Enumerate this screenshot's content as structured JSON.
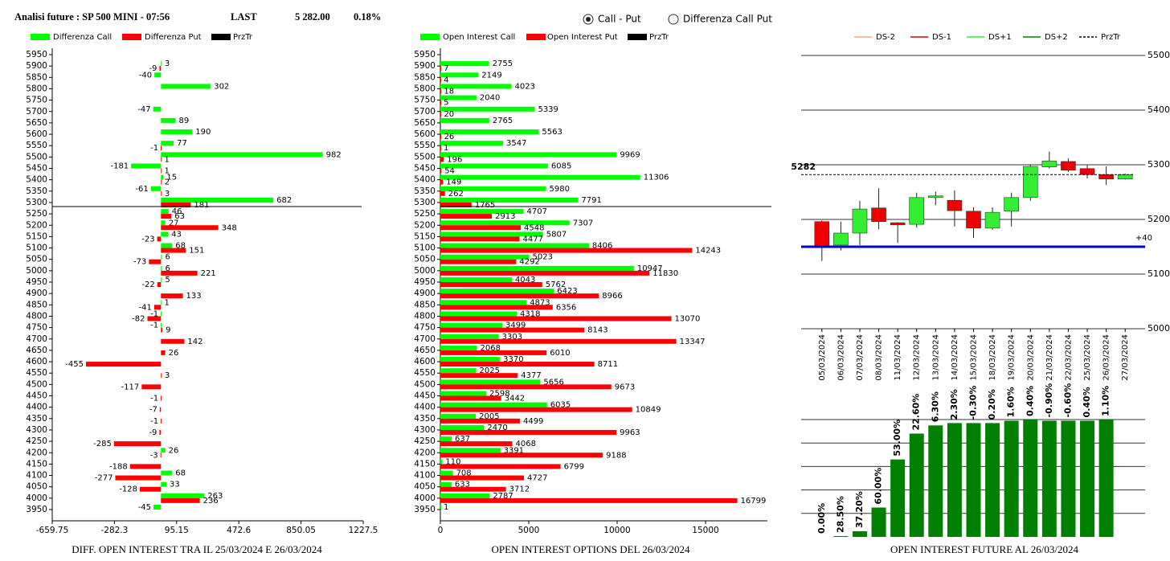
{
  "header": {
    "title": "Analisi future : SP 500 MINI - 07:56",
    "last_label": "LAST",
    "last": {
      "value": 5282,
      "label": "5 282.00"
    },
    "change": "0.18%"
  },
  "controls": {
    "options": [
      "Call - Put",
      "Differenza Call Put"
    ],
    "selected": 0
  },
  "chart_data": [
    {
      "type": "bar",
      "orientation": "horizontal",
      "categories": [
        5950,
        5900,
        5850,
        5800,
        5750,
        5700,
        5650,
        5600,
        5550,
        5500,
        5450,
        5400,
        5350,
        5300,
        5250,
        5200,
        5150,
        5100,
        5050,
        5000,
        4950,
        4900,
        4850,
        4800,
        4750,
        4700,
        4650,
        4600,
        4550,
        4500,
        4450,
        4400,
        4350,
        4300,
        4250,
        4200,
        4150,
        4100,
        4050,
        4000,
        3950
      ],
      "series": [
        {
          "name": "Differenza Call",
          "color": "#00ff00",
          "values": [
            null,
            3,
            -40,
            302,
            null,
            -47,
            89,
            190,
            77,
            982,
            -181,
            15,
            -61,
            682,
            46,
            27,
            43,
            68,
            6,
            6,
            5,
            null,
            1,
            -1,
            -1,
            null,
            null,
            null,
            null,
            null,
            null,
            null,
            null,
            null,
            null,
            26,
            null,
            68,
            33,
            263,
            -45
          ]
        },
        {
          "name": "Differenza Put",
          "color": "#ff0000",
          "values": [
            null,
            -9,
            null,
            null,
            null,
            null,
            null,
            null,
            -1,
            1,
            1,
            2,
            3,
            181,
            63,
            348,
            -23,
            151,
            -73,
            221,
            -22,
            133,
            -41,
            -82,
            9,
            142,
            26,
            -455,
            3,
            -117,
            -1,
            -7,
            -1,
            -9,
            -285,
            -3,
            -188,
            -277,
            -128,
            236,
            null
          ]
        }
      ],
      "reference_line": {
        "name": "PrzTr",
        "color": "#000000"
      },
      "xlim": [
        -659.75,
        1227.5
      ],
      "xticks": [
        -659.75,
        -282.3,
        95.15,
        472.6,
        850.05,
        1227.5
      ],
      "xlabel": "DIFF. OPEN INTEREST TRA IL 25/03/2024 E 26/03/2024"
    },
    {
      "type": "bar",
      "orientation": "horizontal",
      "categories": [
        5950,
        5900,
        5850,
        5800,
        5750,
        5700,
        5650,
        5600,
        5550,
        5500,
        5450,
        5400,
        5350,
        5300,
        5250,
        5200,
        5150,
        5100,
        5050,
        5000,
        4950,
        4900,
        4850,
        4800,
        4750,
        4700,
        4650,
        4600,
        4550,
        4500,
        4450,
        4400,
        4350,
        4300,
        4250,
        4200,
        4150,
        4100,
        4050,
        4000,
        3950
      ],
      "series": [
        {
          "name": "Open Interest Call",
          "color": "#00ff00",
          "values": [
            null,
            2755,
            2149,
            4023,
            2040,
            5339,
            2765,
            5563,
            3547,
            9969,
            6085,
            11306,
            5980,
            7791,
            4707,
            7307,
            5807,
            8406,
            5023,
            10947,
            4043,
            6423,
            4873,
            4318,
            3499,
            3303,
            2068,
            3370,
            2025,
            5656,
            2598,
            6035,
            2005,
            2470,
            637,
            3391,
            110,
            708,
            633,
            2787,
            1
          ]
        },
        {
          "name": "Open Interest Put",
          "color": "#ff0000",
          "values": [
            null,
            7,
            4,
            18,
            5,
            20,
            null,
            26,
            1,
            196,
            54,
            149,
            262,
            1765,
            2913,
            4548,
            4477,
            14243,
            4292,
            11830,
            5762,
            8966,
            6356,
            13070,
            8143,
            13347,
            6010,
            8711,
            4377,
            9673,
            3442,
            10849,
            4499,
            9963,
            4068,
            9188,
            6799,
            4727,
            3712,
            16799,
            null
          ]
        }
      ],
      "reference_line": {
        "name": "PrzTr",
        "color": "#000000"
      },
      "xlim": [
        0,
        18500
      ],
      "xticks": [
        0,
        5000,
        10000,
        15000
      ],
      "xlabel": "OPEN INTEREST OPTIONS DEL 26/03/2024"
    },
    {
      "type": "candlestick",
      "categories": [
        "05/03/2024",
        "06/03/2024",
        "07/03/2024",
        "08/03/2024",
        "11/03/2024",
        "12/03/2024",
        "13/03/2024",
        "14/03/2024",
        "15/03/2024",
        "18/03/2024",
        "19/03/2024",
        "20/03/2024",
        "21/03/2024",
        "22/03/2024",
        "25/03/2024",
        "26/03/2024",
        "27/03/2024"
      ],
      "open": [
        5196,
        5153,
        5175,
        5221,
        5194,
        5191,
        5240,
        5235,
        5215,
        5184,
        5215,
        5240,
        5296,
        5306,
        5293,
        5282,
        5274
      ],
      "high": [
        5198,
        5196,
        5234,
        5257,
        5195,
        5249,
        5251,
        5253,
        5222,
        5222,
        5249,
        5301,
        5324,
        5312,
        5299,
        5297,
        5284
      ],
      "low": [
        5124,
        5143,
        5153,
        5182,
        5157,
        5185,
        5226,
        5187,
        5166,
        5181,
        5187,
        5234,
        5293,
        5287,
        5275,
        5263,
        5273
      ],
      "close": [
        5151,
        5175,
        5219,
        5196,
        5190,
        5240,
        5243,
        5216,
        5184,
        5213,
        5240,
        5297,
        5307,
        5290,
        5282,
        5274,
        5282
      ],
      "up_color": "#33ee33",
      "down_color": "#ee0000",
      "ylim": [
        5000,
        5500
      ],
      "yticks": [
        5000,
        5100,
        5200,
        5300,
        5400,
        5500
      ],
      "legend": [
        {
          "name": "DS-2",
          "color": "#f4a582"
        },
        {
          "name": "DS-1",
          "color": "#e00000"
        },
        {
          "name": "DS+1",
          "color": "#33ee33"
        },
        {
          "name": "DS+2",
          "color": "#008000"
        },
        {
          "name": "PrzTr",
          "color": "#000000",
          "dash": true
        }
      ],
      "reference_line": {
        "value": 5282,
        "color": "#000000"
      },
      "level_line": {
        "value": 5150,
        "label": "+40",
        "color": "#0000cc"
      }
    },
    {
      "type": "bar",
      "values": [
        0,
        0.7,
        4.8,
        25,
        66,
        88,
        95,
        97,
        97,
        97,
        99,
        100,
        99,
        99,
        99,
        100,
        null
      ],
      "labels": [
        "0.00%",
        "28.50%",
        "37.20%",
        "60.00%",
        "53.00%",
        "22.60%",
        "6.30%",
        "2.30%",
        "-0.30%",
        "0.20%",
        "1.60%",
        "0.40%",
        "-0.90%",
        "-0.60%",
        "0.40%",
        "1.10%",
        null
      ],
      "color": "#008000",
      "ylim": [
        0,
        100
      ],
      "grid": true,
      "xlabel": "OPEN INTEREST FUTURE AL 26/03/2024"
    }
  ]
}
